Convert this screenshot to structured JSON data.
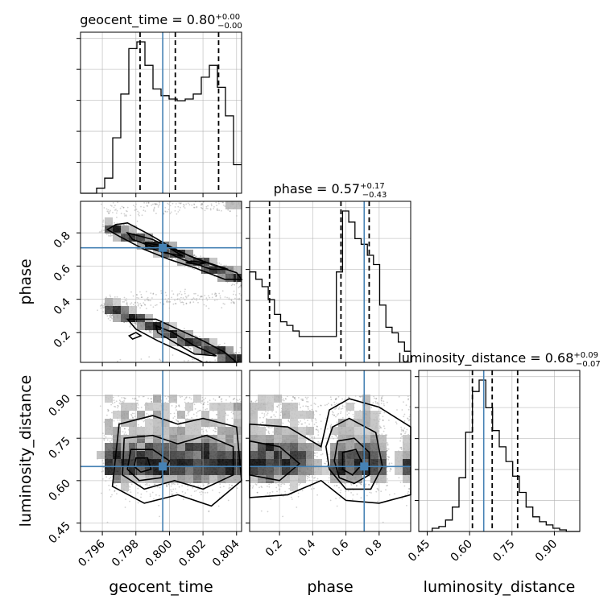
{
  "chart_data": {
    "type": "corner",
    "parameters": [
      "geocent_time",
      "phase",
      "luminosity_distance"
    ],
    "truths": {
      "geocent_time": 0.7996,
      "phase": 0.71,
      "luminosity_distance": 0.65
    },
    "titles": {
      "geocent_time": {
        "label": "geocent_time = 0.80",
        "sup": "+0.00",
        "sub": "−0.00"
      },
      "phase": {
        "label": "phase = 0.57",
        "sup": "+0.17",
        "sub": "−0.43"
      },
      "luminosity_distance": {
        "label": "luminosity_distance = 0.68",
        "sup": "+0.09",
        "sub": "−0.07"
      }
    },
    "axis_labels": {
      "x": [
        "geocent_time",
        "phase",
        "luminosity_distance"
      ],
      "y": [
        "phase",
        "luminosity_distance"
      ]
    },
    "ranges": {
      "geocent_time": [
        0.7947,
        0.8043
      ],
      "phase": [
        0.02,
        0.99
      ],
      "luminosity_distance": [
        0.42,
        0.99
      ]
    },
    "ticks": {
      "geocent_time": [
        "0.796",
        "0.798",
        "0.800",
        "0.802",
        "0.804"
      ],
      "phase": [
        "0.2",
        "0.4",
        "0.6",
        "0.8"
      ],
      "luminosity_distance": [
        "0.45",
        "0.60",
        "0.75",
        "0.90"
      ]
    },
    "quantiles": {
      "geocent_time": [
        0.79825,
        0.80035,
        0.80293
      ],
      "phase": [
        0.14,
        0.57,
        0.74
      ],
      "luminosity_distance": [
        0.61,
        0.68,
        0.77
      ]
    },
    "histograms": {
      "geocent_time": [
        0,
        0,
        0.03,
        0.09,
        0.33,
        0.59,
        0.86,
        0.9,
        0.76,
        0.62,
        0.58,
        0.56,
        0.55,
        0.56,
        0.59,
        0.69,
        0.76,
        0.63,
        0.46,
        0.17
      ],
      "phase": [
        0.49,
        0.45,
        0.41,
        0.34,
        0.26,
        0.22,
        0.2,
        0.17,
        0.14,
        0.14,
        0.14,
        0.14,
        0.14,
        0.14,
        0.49,
        0.82,
        0.76,
        0.67,
        0.64,
        0.58,
        0.53,
        0.31,
        0.19,
        0.16,
        0.11,
        0.06
      ],
      "luminosity_distance": [
        0,
        0,
        0.02,
        0.03,
        0.07,
        0.15,
        0.33,
        0.61,
        0.86,
        0.93,
        0.76,
        0.62,
        0.52,
        0.43,
        0.34,
        0.24,
        0.15,
        0.09,
        0.06,
        0.04,
        0.02,
        0.01,
        0,
        0
      ]
    },
    "grid": true
  }
}
